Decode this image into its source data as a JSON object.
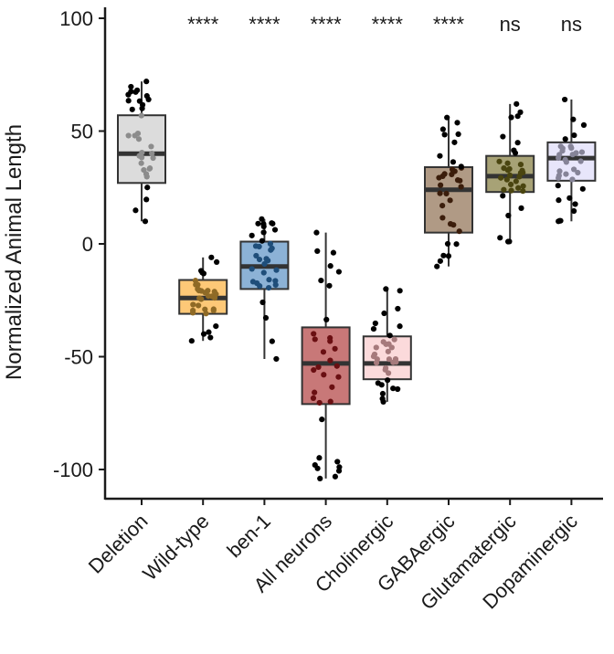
{
  "chart_data": {
    "type": "boxplot",
    "title": "",
    "xlabel": "",
    "ylabel": "Normalized Animal Length",
    "ylim": [
      -112,
      103
    ],
    "yticks": [
      100,
      50,
      0,
      -50,
      -100
    ],
    "ytick_labels": [
      "100",
      "50",
      "0",
      "-50",
      "-100"
    ],
    "grid": false,
    "legend": "none",
    "categories": [
      "Deletion",
      "Wild-type",
      "ben-1",
      "All neurons",
      "Cholinergic",
      "GABAergic",
      "Glutamatergic",
      "Dopaminergic"
    ],
    "significance": [
      "",
      "****",
      "****",
      "****",
      "****",
      "****",
      "ns",
      "ns"
    ],
    "boxes": [
      {
        "name": "Deletion",
        "color": "#dcdcdc",
        "dot_color": "#8c8c8c",
        "whisker_low": 10,
        "q1": 27,
        "median": 40,
        "q3": 57,
        "whisker_high": 72
      },
      {
        "name": "Wild-type",
        "color": "#fdc877",
        "dot_color": "#8f6a26",
        "whisker_low": -43,
        "q1": -31,
        "median": -24,
        "q3": -16,
        "whisker_high": -6
      },
      {
        "name": "ben-1",
        "color": "#8cb2d6",
        "dot_color": "#1f4e7a",
        "whisker_low": -51,
        "q1": -20,
        "median": -10,
        "q3": 1,
        "whisker_high": 11
      },
      {
        "name": "All neurons",
        "color": "#c87878",
        "dot_color": "#6a0f12",
        "whisker_low": -104,
        "q1": -71,
        "median": -53,
        "q3": -37,
        "whisker_high": 5
      },
      {
        "name": "Cholinergic",
        "color": "#fbdadb",
        "dot_color": "#a67a7c",
        "whisker_low": -70,
        "q1": -60,
        "median": -53,
        "q3": -41,
        "whisker_high": -20
      },
      {
        "name": "GABAergic",
        "color": "#b09a85",
        "dot_color": "#3b1d0b",
        "whisker_low": -10,
        "q1": 5,
        "median": 24,
        "q3": 34,
        "whisker_high": 56
      },
      {
        "name": "Glutamatergic",
        "color": "#a7a276",
        "dot_color": "#4a4510",
        "whisker_low": 1,
        "q1": 23,
        "median": 30,
        "q3": 39,
        "whisker_high": 62
      },
      {
        "name": "Dopaminergic",
        "color": "#e8e6fb",
        "dot_color": "#868498",
        "whisker_low": 10,
        "q1": 28,
        "median": 38,
        "q3": 45,
        "whisker_high": 64
      }
    ]
  }
}
